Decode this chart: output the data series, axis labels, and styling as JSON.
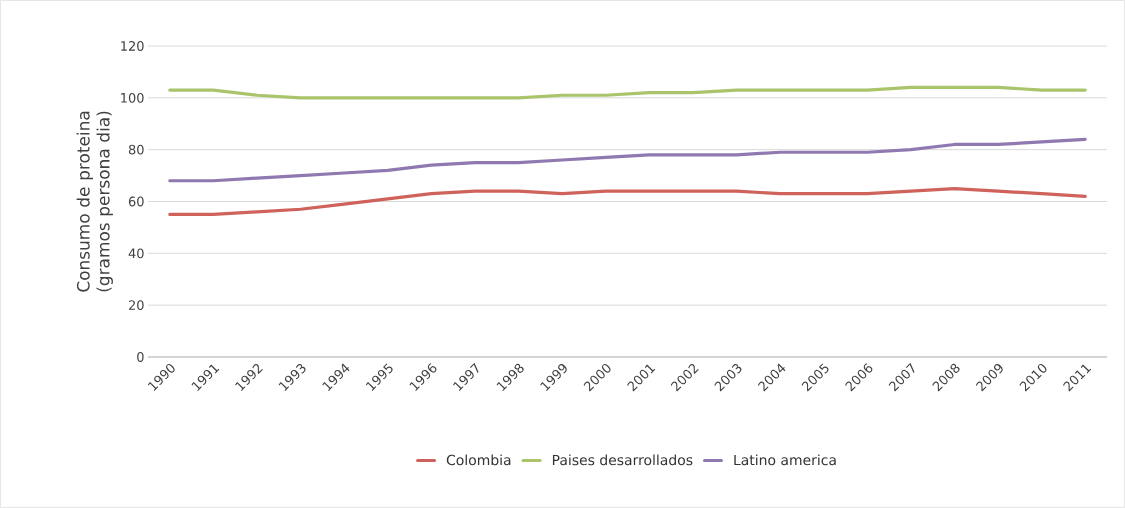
{
  "chart_data": {
    "type": "line",
    "ylabel": "Consumo de proteina (gramos persona dia)",
    "categories": [
      "1990",
      "1991",
      "1992",
      "1993",
      "1994",
      "1995",
      "1996",
      "1997",
      "1998",
      "1999",
      "2000",
      "2001",
      "2002",
      "2003",
      "2004",
      "2005",
      "2006",
      "2007",
      "2008",
      "2009",
      "2010",
      "2011"
    ],
    "series": [
      {
        "name": "Colombia",
        "color": "#cf635c",
        "values": [
          55,
          55,
          56,
          57,
          59,
          61,
          63,
          64,
          64,
          63,
          64,
          64,
          64,
          64,
          63,
          63,
          63,
          64,
          65,
          64,
          63,
          62
        ]
      },
      {
        "name": "Paises desarrollados",
        "color": "#a9c46b",
        "values": [
          103,
          103,
          101,
          100,
          100,
          100,
          100,
          100,
          100,
          101,
          101,
          102,
          102,
          103,
          103,
          103,
          103,
          104,
          104,
          104,
          103,
          103
        ]
      },
      {
        "name": "Latino america",
        "color": "#9079b0",
        "values": [
          68,
          68,
          69,
          70,
          71,
          72,
          74,
          75,
          75,
          76,
          77,
          78,
          78,
          78,
          79,
          79,
          79,
          80,
          82,
          82,
          83,
          84
        ]
      }
    ],
    "ylim": [
      0,
      120
    ],
    "yticks": [
      0,
      20,
      40,
      60,
      80,
      100,
      120
    ],
    "grid": "y",
    "legend": "bottom",
    "marker": "none",
    "line_style": "solid"
  }
}
